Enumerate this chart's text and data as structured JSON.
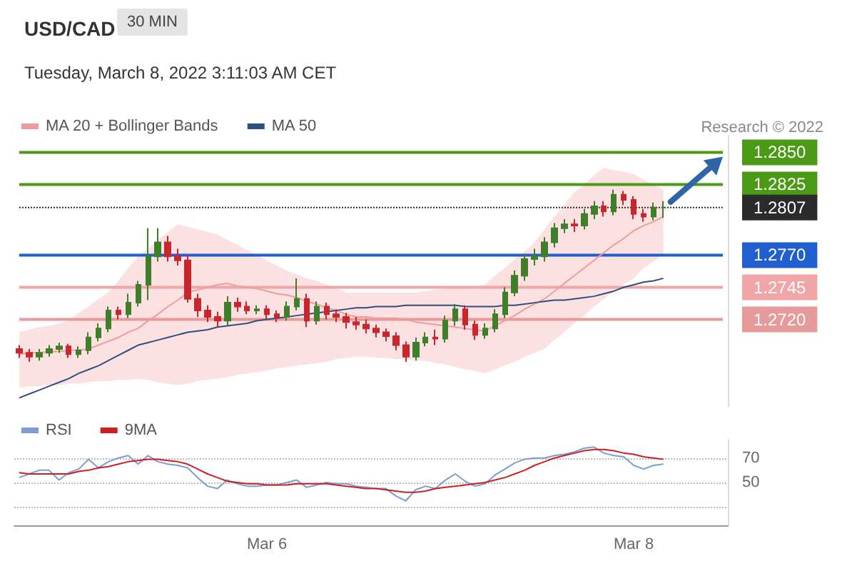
{
  "chart_data": [
    {
      "type": "candlestick",
      "title": "USD/CAD",
      "subtitle": "Tuesday, March 8, 2022 3:11:03 AM CET",
      "annotations": [
        "30 MIN",
        "Research © 2022"
      ],
      "categories": [
        null,
        null,
        null,
        null,
        null,
        null,
        null,
        null,
        null,
        null,
        null,
        null,
        null,
        null,
        null,
        null,
        null,
        null,
        null,
        null,
        null,
        null,
        null,
        null,
        null,
        null,
        null,
        null,
        null,
        null,
        null,
        null,
        null,
        null,
        null,
        null,
        null,
        null,
        null,
        null,
        null,
        null,
        null,
        null,
        null,
        null,
        null,
        null,
        null,
        null,
        null,
        null,
        null,
        null,
        null,
        null,
        null,
        null,
        null,
        null,
        null,
        null,
        null,
        null,
        null,
        null
      ],
      "ohlc": [
        [
          1.2697,
          1.27,
          1.269,
          1.2694
        ],
        [
          1.2694,
          1.2697,
          1.2687,
          1.2691
        ],
        [
          1.2691,
          1.2697,
          1.2688,
          1.2694
        ],
        [
          1.2694,
          1.27,
          1.2691,
          1.2697
        ],
        [
          1.2697,
          1.2702,
          1.2694,
          1.2699
        ],
        [
          1.2699,
          1.2701,
          1.269,
          1.2693
        ],
        [
          1.2693,
          1.2699,
          1.269,
          1.2696
        ],
        [
          1.2696,
          1.271,
          1.2693,
          1.2706
        ],
        [
          1.2706,
          1.2717,
          1.2703,
          1.2713
        ],
        [
          1.2713,
          1.273,
          1.271,
          1.2727
        ],
        [
          1.2727,
          1.273,
          1.272,
          1.2724
        ],
        [
          1.2724,
          1.274,
          1.2721,
          1.2733
        ],
        [
          1.2733,
          1.275,
          1.273,
          1.2747
        ],
        [
          1.2747,
          1.2791,
          1.2735,
          1.2769
        ],
        [
          1.2769,
          1.2791,
          1.2765,
          1.278
        ],
        [
          1.278,
          1.2785,
          1.2765,
          1.2769
        ],
        [
          1.2769,
          1.2775,
          1.2762,
          1.2766
        ],
        [
          1.2766,
          1.277,
          1.2733,
          1.2736
        ],
        [
          1.2736,
          1.274,
          1.2722,
          1.2727
        ],
        [
          1.2727,
          1.2731,
          1.2718,
          1.2722
        ],
        [
          1.2722,
          1.2726,
          1.2714,
          1.2719
        ],
        [
          1.2719,
          1.2738,
          1.2715,
          1.2733
        ],
        [
          1.2733,
          1.2737,
          1.2726,
          1.273
        ],
        [
          1.273,
          1.2734,
          1.2724,
          1.2727
        ],
        [
          1.2727,
          1.2731,
          1.2724,
          1.2728
        ],
        [
          1.2728,
          1.2731,
          1.272,
          1.2724
        ],
        [
          1.2724,
          1.2727,
          1.2718,
          1.2722
        ],
        [
          1.2722,
          1.2734,
          1.2719,
          1.273
        ],
        [
          1.273,
          1.2752,
          1.2727,
          1.2736
        ],
        [
          1.2736,
          1.274,
          1.2714,
          1.2719
        ],
        [
          1.2719,
          1.2734,
          1.2716,
          1.273
        ],
        [
          1.273,
          1.2733,
          1.272,
          1.2724
        ],
        [
          1.2724,
          1.2728,
          1.2718,
          1.2722
        ],
        [
          1.2722,
          1.2725,
          1.2713,
          1.2718
        ],
        [
          1.2718,
          1.2722,
          1.2712,
          1.2716
        ],
        [
          1.2716,
          1.272,
          1.2709,
          1.2713
        ],
        [
          1.2713,
          1.2716,
          1.2706,
          1.271
        ],
        [
          1.271,
          1.2713,
          1.2703,
          1.2707
        ],
        [
          1.2707,
          1.271,
          1.2696,
          1.27
        ],
        [
          1.27,
          1.2703,
          1.2687,
          1.2691
        ],
        [
          1.2691,
          1.2706,
          1.2688,
          1.2702
        ],
        [
          1.2702,
          1.271,
          1.2699,
          1.2706
        ],
        [
          1.2706,
          1.2712,
          1.27,
          1.2705
        ],
        [
          1.2705,
          1.2723,
          1.2702,
          1.2719
        ],
        [
          1.2719,
          1.2732,
          1.2715,
          1.2728
        ],
        [
          1.2728,
          1.2731,
          1.2712,
          1.2716
        ],
        [
          1.2716,
          1.2719,
          1.2704,
          1.2708
        ],
        [
          1.2708,
          1.2717,
          1.2705,
          1.2713
        ],
        [
          1.2713,
          1.2728,
          1.271,
          1.2724
        ],
        [
          1.2724,
          1.2745,
          1.2721,
          1.2741
        ],
        [
          1.2741,
          1.2758,
          1.2738,
          1.2754
        ],
        [
          1.2754,
          1.2771,
          1.275,
          1.2767
        ],
        [
          1.2767,
          1.2775,
          1.2762,
          1.2769
        ],
        [
          1.2769,
          1.2784,
          1.2765,
          1.278
        ],
        [
          1.278,
          1.2795,
          1.2776,
          1.2791
        ],
        [
          1.2791,
          1.2798,
          1.2787,
          1.2794
        ],
        [
          1.2794,
          1.2798,
          1.2788,
          1.2793
        ],
        [
          1.2793,
          1.2806,
          1.279,
          1.2802
        ],
        [
          1.2802,
          1.2812,
          1.2798,
          1.2808
        ],
        [
          1.2808,
          1.2812,
          1.28,
          1.2804
        ],
        [
          1.2804,
          1.2821,
          1.2801,
          1.2817
        ],
        [
          1.2817,
          1.282,
          1.2809,
          1.2813
        ],
        [
          1.2813,
          1.2816,
          1.2798,
          1.2802
        ],
        [
          1.2802,
          1.2806,
          1.2796,
          1.28
        ],
        [
          1.28,
          1.2811,
          1.2797,
          1.2807
        ],
        [
          1.2807,
          1.2812,
          1.2799,
          1.2807
        ]
      ],
      "series": [
        {
          "type": "line",
          "name": "MA 20 + Bollinger Bands",
          "color": "#f19c9c",
          "values": [
            1.2693,
            1.2694,
            1.2694,
            1.2695,
            1.2695,
            1.2696,
            1.2696,
            1.2697,
            1.27,
            1.2703,
            1.2706,
            1.271,
            1.2713,
            1.2719,
            1.2724,
            1.273,
            1.2735,
            1.2741,
            1.2743,
            1.2745,
            1.2747,
            1.2748,
            1.2746,
            1.2745,
            1.2744,
            1.2742,
            1.274,
            1.2739,
            1.2737,
            1.2734,
            1.2732,
            1.2729,
            1.2727,
            1.2724,
            1.2722,
            1.2722,
            1.2721,
            1.2721,
            1.2721,
            1.272,
            1.2718,
            1.2717,
            1.2716,
            1.2715,
            1.2714,
            1.2713,
            1.2712,
            1.2711,
            1.2715,
            1.2719,
            1.2723,
            1.2728,
            1.2732,
            1.2736,
            1.2742,
            1.2748,
            1.2754,
            1.276,
            1.2766,
            1.2772,
            1.2778,
            1.2783,
            1.2789,
            1.2793,
            1.2796,
            1.28
          ],
          "upper": [
            1.271,
            1.2712,
            1.2714,
            1.2715,
            1.2717,
            1.2719,
            1.2725,
            1.273,
            1.2736,
            1.2741,
            1.275,
            1.276,
            1.2769,
            1.2775,
            1.2782,
            1.2788,
            1.2794,
            1.2792,
            1.279,
            1.2788,
            1.2786,
            1.2782,
            1.2778,
            1.2774,
            1.277,
            1.2766,
            1.2762,
            1.2758,
            1.2755,
            1.2752,
            1.275,
            1.2747,
            1.2744,
            1.2741,
            1.2741,
            1.2741,
            1.2741,
            1.2741,
            1.2741,
            1.2741,
            1.2741,
            1.2742,
            1.2743,
            1.2744,
            1.2744,
            1.2745,
            1.2746,
            1.2747,
            1.2754,
            1.276,
            1.2767,
            1.2773,
            1.278,
            1.279,
            1.28,
            1.2809,
            1.2819,
            1.2825,
            1.2832,
            1.2838,
            1.2836,
            1.2835,
            1.2833,
            1.2829,
            1.2825,
            1.2821
          ],
          "lower": [
            1.2667,
            1.2668,
            1.2668,
            1.2669,
            1.2669,
            1.267,
            1.267,
            1.2671,
            1.2672,
            1.2672,
            1.2673,
            1.2673,
            1.2674,
            1.2673,
            1.2671,
            1.267,
            1.2669,
            1.267,
            1.2672,
            1.2673,
            1.2674,
            1.2675,
            1.2677,
            1.2678,
            1.2679,
            1.268,
            1.2682,
            1.2683,
            1.2684,
            1.2685,
            1.2686,
            1.2687,
            1.2689,
            1.269,
            1.2691,
            1.2691,
            1.269,
            1.269,
            1.2689,
            1.2689,
            1.2688,
            1.2688,
            1.2686,
            1.2685,
            1.2683,
            1.2681,
            1.268,
            1.2678,
            1.2681,
            1.2684,
            1.2687,
            1.2691,
            1.2694,
            1.2697,
            1.2704,
            1.271,
            1.2717,
            1.2723,
            1.273,
            1.2736,
            1.2742,
            1.2747,
            1.2752,
            1.276,
            1.2765,
            1.2771
          ]
        },
        {
          "type": "line",
          "name": "MA 50",
          "color": "#2f4f7f",
          "values": [
            1.2659,
            1.2662,
            1.2665,
            1.2668,
            1.2671,
            1.2674,
            1.2678,
            1.2681,
            1.2684,
            1.2688,
            1.2692,
            1.2696,
            1.27,
            1.2702,
            1.2704,
            1.2706,
            1.2708,
            1.271,
            1.2711,
            1.2712,
            1.2714,
            1.2715,
            1.2716,
            1.2717,
            1.2719,
            1.272,
            1.2721,
            1.2722,
            1.2723,
            1.2724,
            1.2725,
            1.2726,
            1.2727,
            1.2728,
            1.2729,
            1.2729,
            1.273,
            1.273,
            1.273,
            1.2731,
            1.2731,
            1.2731,
            1.2731,
            1.2731,
            1.2731,
            1.273,
            1.273,
            1.273,
            1.273,
            1.2731,
            1.2731,
            1.2732,
            1.2733,
            1.2734,
            1.2735,
            1.2735,
            1.2736,
            1.2737,
            1.2738,
            1.274,
            1.2742,
            1.2745,
            1.2747,
            1.2749,
            1.275,
            1.2752
          ]
        }
      ],
      "ref_lines": [
        {
          "axis": "y",
          "value": 1.285,
          "color": "#4a9a16"
        },
        {
          "axis": "y",
          "value": 1.2825,
          "color": "#4a9a16"
        },
        {
          "axis": "y",
          "value": 1.2807,
          "color": "#2b2b2b",
          "line_style": "dotted"
        },
        {
          "axis": "y",
          "value": 1.277,
          "color": "#1f5fd0"
        },
        {
          "axis": "y",
          "value": 1.2745,
          "color": "#f0a6a6"
        },
        {
          "axis": "y",
          "value": 1.272,
          "color": "#e69a9a"
        }
      ],
      "ylim": [
        1.2652,
        1.2863
      ],
      "yticks": [
        {
          "value": 1.285,
          "label": "1.2850"
        },
        {
          "value": 1.2825,
          "label": "1.2825"
        },
        {
          "value": 1.2807,
          "label": "1.2807"
        },
        {
          "value": 1.277,
          "label": "1.2770"
        },
        {
          "value": 1.2745,
          "label": "1.2745"
        },
        {
          "value": 1.272,
          "label": "1.2720"
        }
      ],
      "tick_labels": "y",
      "legend": "top left",
      "grid": false,
      "marker": "none"
    },
    {
      "type": "line",
      "categories": [
        null,
        null,
        null,
        null,
        null,
        null,
        null,
        null,
        null,
        null,
        null,
        null,
        null,
        null,
        null,
        null,
        null,
        null,
        null,
        null,
        null,
        null,
        null,
        null,
        null,
        "Mar 6",
        null,
        null,
        null,
        null,
        null,
        null,
        null,
        null,
        null,
        null,
        null,
        null,
        null,
        null,
        null,
        null,
        null,
        null,
        null,
        null,
        null,
        null,
        null,
        null,
        null,
        null,
        null,
        null,
        null,
        null,
        null,
        null,
        null,
        null,
        null,
        null,
        "Mar 8",
        null,
        null,
        null
      ],
      "series": [
        {
          "name": "RSI",
          "color": "#7d9bd4",
          "values": [
            54,
            57,
            60,
            60,
            52,
            58,
            61,
            69,
            62,
            67,
            70,
            72,
            65,
            72,
            67,
            65,
            64,
            62,
            54,
            47,
            45,
            52,
            49,
            47,
            47,
            48,
            48,
            50,
            52,
            46,
            48,
            50,
            49,
            49,
            47,
            46,
            45,
            45,
            39,
            35,
            44,
            47,
            45,
            52,
            57,
            51,
            47,
            49,
            56,
            61,
            66,
            69,
            70,
            70,
            72,
            73,
            75,
            78,
            79,
            74,
            72,
            71,
            64,
            61,
            64,
            65
          ]
        },
        {
          "name": "9MA",
          "color": "#cc2020",
          "values": [
            58,
            57,
            57,
            57,
            57,
            57,
            59,
            60,
            62,
            63,
            65,
            67,
            68,
            69,
            69,
            68,
            67,
            65,
            61,
            57,
            54,
            51,
            50,
            49,
            49,
            48,
            48,
            48,
            49,
            49,
            49,
            49,
            48,
            47,
            46,
            45,
            45,
            44,
            43,
            42,
            42,
            43,
            45,
            46,
            47,
            48,
            49,
            50,
            52,
            54,
            57,
            60,
            64,
            67,
            70,
            72,
            74,
            76,
            77,
            77,
            76,
            74,
            73,
            71,
            70,
            69
          ]
        }
      ],
      "ylim": [
        15,
        85
      ],
      "yticks": [
        70,
        50,
        {
          "value": 30,
          "label": null
        }
      ],
      "grid": "y",
      "legend": "top left",
      "marker": "none"
    }
  ]
}
